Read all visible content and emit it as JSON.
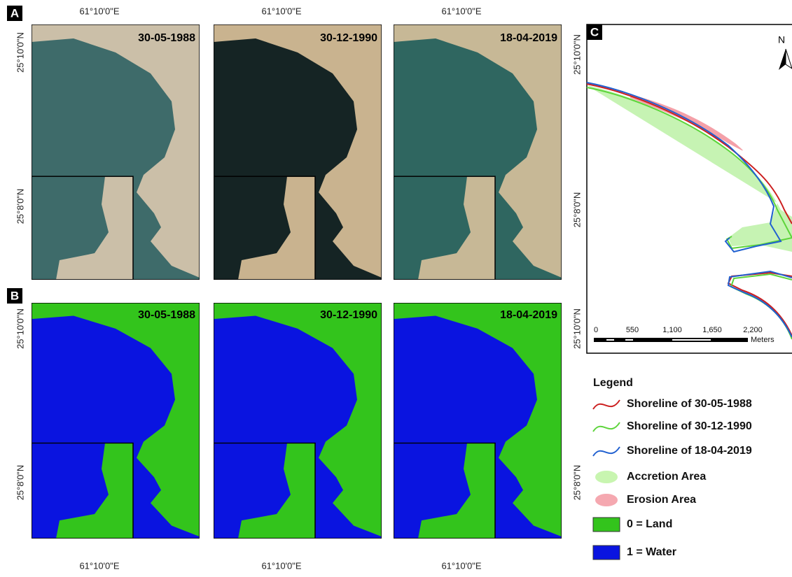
{
  "panel_a": {
    "label": "A",
    "top_labels": [
      "61°10'0\"E",
      "61°10'0\"E",
      "61°10'0\"E"
    ],
    "left_labels": [
      "25°10'0\"N",
      "25°8'0\"N"
    ],
    "dates": [
      "30-05-1988",
      "30-12-1990",
      "18-04-2019"
    ]
  },
  "panel_b": {
    "label": "B",
    "dates": [
      "30-05-1988",
      "30-12-1990",
      "18-04-2019"
    ],
    "left_labels": [
      "25°10'0\"N",
      "25°8'0\"N"
    ],
    "right_labels": [
      "25°10'0\"N",
      "25°8'0\"N"
    ],
    "bottom_labels": [
      "61°10'0\"E",
      "61°10'0\"E",
      "61°10'0\"E"
    ]
  },
  "panel_c": {
    "label": "C",
    "left_labels": [
      "25°10'0\"N",
      "25°8'0\"N"
    ],
    "north": "N",
    "scale_labels": [
      "0",
      "550",
      "1,100",
      "1,650",
      "2,200"
    ],
    "scale_unit": "Meters"
  },
  "legend": {
    "title": "Legend",
    "items": [
      "Shoreline of 30-05-1988",
      "Shoreline of 30-12-1990",
      "Shoreline of 18-04-2019",
      "Accretion Area",
      "Erosion Area",
      "0 = Land",
      "1 = Water"
    ]
  }
}
